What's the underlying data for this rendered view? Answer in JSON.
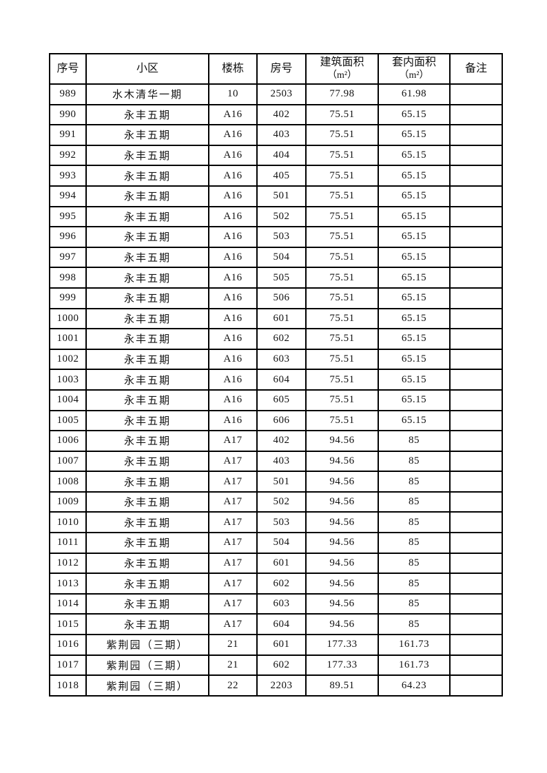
{
  "table": {
    "column_keys": [
      "serial",
      "community",
      "building",
      "room",
      "building-area",
      "inner-area",
      "remark"
    ],
    "headers": [
      {
        "label": "序号",
        "sub": ""
      },
      {
        "label": "小区",
        "sub": ""
      },
      {
        "label": "楼栋",
        "sub": ""
      },
      {
        "label": "房号",
        "sub": ""
      },
      {
        "label": "建筑面积",
        "sub": "（m²）"
      },
      {
        "label": "套内面积",
        "sub": "（m²）"
      },
      {
        "label": "备注",
        "sub": ""
      }
    ],
    "rows": [
      [
        "989",
        "水木清华一期",
        "10",
        "2503",
        "77.98",
        "61.98",
        ""
      ],
      [
        "990",
        "永丰五期",
        "A16",
        "402",
        "75.51",
        "65.15",
        ""
      ],
      [
        "991",
        "永丰五期",
        "A16",
        "403",
        "75.51",
        "65.15",
        ""
      ],
      [
        "992",
        "永丰五期",
        "A16",
        "404",
        "75.51",
        "65.15",
        ""
      ],
      [
        "993",
        "永丰五期",
        "A16",
        "405",
        "75.51",
        "65.15",
        ""
      ],
      [
        "994",
        "永丰五期",
        "A16",
        "501",
        "75.51",
        "65.15",
        ""
      ],
      [
        "995",
        "永丰五期",
        "A16",
        "502",
        "75.51",
        "65.15",
        ""
      ],
      [
        "996",
        "永丰五期",
        "A16",
        "503",
        "75.51",
        "65.15",
        ""
      ],
      [
        "997",
        "永丰五期",
        "A16",
        "504",
        "75.51",
        "65.15",
        ""
      ],
      [
        "998",
        "永丰五期",
        "A16",
        "505",
        "75.51",
        "65.15",
        ""
      ],
      [
        "999",
        "永丰五期",
        "A16",
        "506",
        "75.51",
        "65.15",
        ""
      ],
      [
        "1000",
        "永丰五期",
        "A16",
        "601",
        "75.51",
        "65.15",
        ""
      ],
      [
        "1001",
        "永丰五期",
        "A16",
        "602",
        "75.51",
        "65.15",
        ""
      ],
      [
        "1002",
        "永丰五期",
        "A16",
        "603",
        "75.51",
        "65.15",
        ""
      ],
      [
        "1003",
        "永丰五期",
        "A16",
        "604",
        "75.51",
        "65.15",
        ""
      ],
      [
        "1004",
        "永丰五期",
        "A16",
        "605",
        "75.51",
        "65.15",
        ""
      ],
      [
        "1005",
        "永丰五期",
        "A16",
        "606",
        "75.51",
        "65.15",
        ""
      ],
      [
        "1006",
        "永丰五期",
        "A17",
        "402",
        "94.56",
        "85",
        ""
      ],
      [
        "1007",
        "永丰五期",
        "A17",
        "403",
        "94.56",
        "85",
        ""
      ],
      [
        "1008",
        "永丰五期",
        "A17",
        "501",
        "94.56",
        "85",
        ""
      ],
      [
        "1009",
        "永丰五期",
        "A17",
        "502",
        "94.56",
        "85",
        ""
      ],
      [
        "1010",
        "永丰五期",
        "A17",
        "503",
        "94.56",
        "85",
        ""
      ],
      [
        "1011",
        "永丰五期",
        "A17",
        "504",
        "94.56",
        "85",
        ""
      ],
      [
        "1012",
        "永丰五期",
        "A17",
        "601",
        "94.56",
        "85",
        ""
      ],
      [
        "1013",
        "永丰五期",
        "A17",
        "602",
        "94.56",
        "85",
        ""
      ],
      [
        "1014",
        "永丰五期",
        "A17",
        "603",
        "94.56",
        "85",
        ""
      ],
      [
        "1015",
        "永丰五期",
        "A17",
        "604",
        "94.56",
        "85",
        ""
      ],
      [
        "1016",
        "紫荆园（三期）",
        "21",
        "601",
        "177.33",
        "161.73",
        ""
      ],
      [
        "1017",
        "紫荆园（三期）",
        "21",
        "602",
        "177.33",
        "161.73",
        ""
      ],
      [
        "1018",
        "紫荆园（三期）",
        "22",
        "2203",
        "89.51",
        "64.23",
        ""
      ]
    ]
  }
}
